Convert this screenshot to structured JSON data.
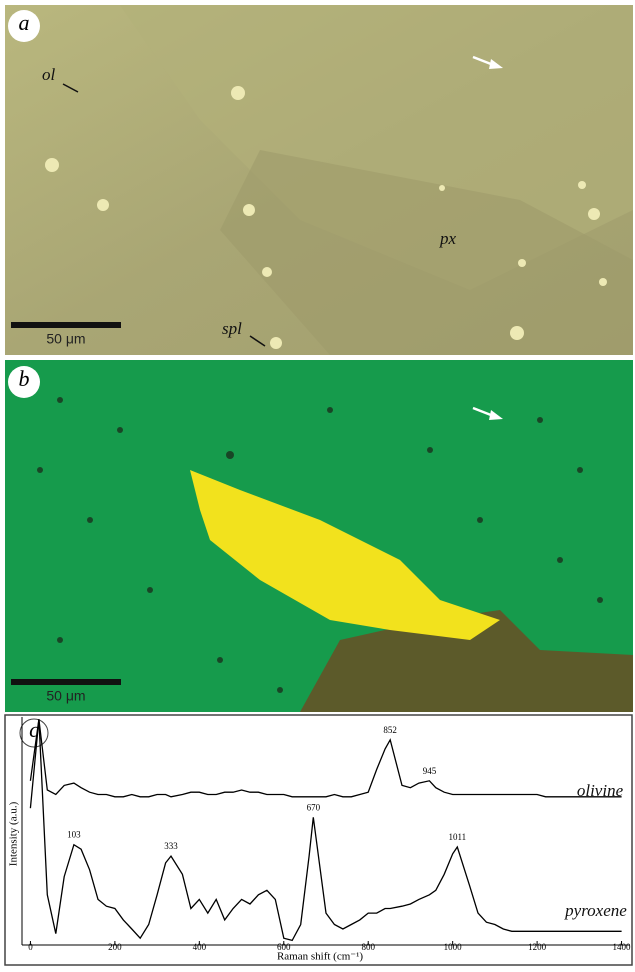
{
  "panels": {
    "a": {
      "label": "a",
      "annotations": [
        "ol",
        "px",
        "spl"
      ],
      "scale_bar": "50 μm"
    },
    "b": {
      "label": "b",
      "scale_bar": "50 μm"
    }
  },
  "chart_data": {
    "type": "line",
    "panel_label": "c",
    "x_label": "Raman shift (cm⁻¹)",
    "y_label": "Intensity (a.u.)",
    "x": [
      0,
      20,
      40,
      60,
      80,
      103,
      120,
      140,
      160,
      180,
      200,
      220,
      240,
      260,
      280,
      300,
      320,
      333,
      360,
      380,
      400,
      420,
      440,
      460,
      480,
      500,
      520,
      540,
      560,
      580,
      600,
      620,
      640,
      660,
      670,
      700,
      720,
      740,
      760,
      780,
      800,
      820,
      840,
      852,
      880,
      900,
      920,
      945,
      960,
      980,
      1000,
      1011,
      1040,
      1060,
      1080,
      1100,
      1120,
      1140,
      1160,
      1180,
      1200,
      1220,
      1240,
      1260,
      1280,
      1300,
      1320,
      1340,
      1360,
      1380,
      1400
    ],
    "series": [
      {
        "name": "olivine",
        "color": "#000000",
        "values": [
          72,
          99,
          68,
          66,
          70,
          71,
          69,
          67,
          66,
          66,
          65,
          65,
          66,
          65,
          65,
          66,
          66,
          65,
          66,
          67,
          67,
          66,
          66,
          67,
          67,
          68,
          67,
          67,
          66,
          66,
          66,
          65,
          65,
          65,
          65,
          65,
          66,
          65,
          65,
          66,
          67,
          77,
          86,
          90,
          70,
          69,
          71,
          72,
          69,
          67,
          66,
          66,
          66,
          66,
          66,
          66,
          66,
          66,
          66,
          66,
          66,
          65,
          65,
          65,
          65,
          65,
          65,
          65,
          65,
          65,
          65
        ]
      },
      {
        "name": "pyroxene",
        "color": "#000000",
        "values": [
          60,
          99,
          22,
          5,
          30,
          44,
          42,
          33,
          20,
          17,
          16,
          11,
          7,
          3,
          9,
          22,
          36,
          39,
          31,
          16,
          20,
          14,
          20,
          11,
          16,
          20,
          18,
          22,
          24,
          20,
          3,
          2,
          9,
          39,
          56,
          14,
          9,
          7,
          9,
          11,
          14,
          14,
          16,
          16,
          17,
          18,
          20,
          22,
          24,
          31,
          40,
          43,
          26,
          14,
          10,
          9,
          7,
          6,
          6,
          6,
          6,
          6,
          6,
          6,
          6,
          6,
          6,
          6,
          6,
          6,
          6
        ]
      }
    ],
    "peak_labels": [
      {
        "value": 852,
        "label": "852",
        "series": "olivine"
      },
      {
        "value": 945,
        "label": "945",
        "series": "olivine"
      },
      {
        "value": 103,
        "label": "103",
        "series": "pyroxene"
      },
      {
        "value": 333,
        "label": "333",
        "series": "pyroxene"
      },
      {
        "value": 670,
        "label": "670",
        "series": "pyroxene"
      },
      {
        "value": 1011,
        "label": "1011",
        "series": "pyroxene"
      }
    ],
    "xlim": [
      -20,
      1420
    ],
    "ylim": [
      0,
      100
    ],
    "xticks": [
      0,
      200,
      400,
      600,
      800,
      1000,
      1200,
      1400
    ]
  }
}
